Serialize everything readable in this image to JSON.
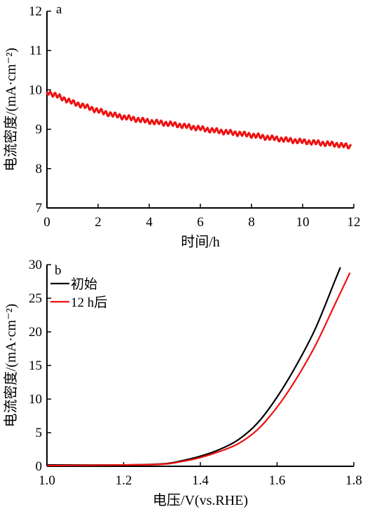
{
  "chart_data": [
    {
      "type": "line",
      "panel_label": "a",
      "xlabel": "时间/h",
      "ylabel": "电流密度/(mA·cm⁻²)",
      "xlim": [
        0,
        12
      ],
      "ylim": [
        7,
        12
      ],
      "xticks": [
        "0",
        "2",
        "4",
        "6",
        "8",
        "10",
        "12"
      ],
      "yticks": [
        "7",
        "8",
        "9",
        "10",
        "11",
        "12"
      ],
      "grid": false,
      "series": [
        {
          "color": "#ee1111",
          "x": [
            0,
            0.5,
            1,
            1.5,
            2,
            2.5,
            3,
            3.5,
            4,
            4.5,
            5,
            5.5,
            6,
            6.5,
            7,
            7.5,
            8,
            8.5,
            9,
            9.5,
            10,
            10.5,
            11,
            11.5,
            11.9
          ],
          "y": [
            9.95,
            9.82,
            9.68,
            9.58,
            9.47,
            9.38,
            9.31,
            9.25,
            9.2,
            9.16,
            9.12,
            9.07,
            9.02,
            8.97,
            8.93,
            8.89,
            8.85,
            8.8,
            8.76,
            8.72,
            8.69,
            8.66,
            8.63,
            8.6,
            8.55
          ]
        }
      ]
    },
    {
      "type": "line",
      "panel_label": "b",
      "xlabel": "电压/V(vs.RHE)",
      "ylabel": "电流密度/(mA·cm⁻²)",
      "xlim": [
        1.0,
        1.8
      ],
      "ylim": [
        0,
        30
      ],
      "xticks": [
        "1.0",
        "1.2",
        "1.4",
        "1.6",
        "1.8"
      ],
      "yticks": [
        "0",
        "5",
        "10",
        "15",
        "20",
        "25",
        "30"
      ],
      "grid": false,
      "legend": "top-left",
      "series": [
        {
          "name": "初始",
          "color": "#000000",
          "x": [
            1.0,
            1.2,
            1.3,
            1.35,
            1.4,
            1.45,
            1.5,
            1.55,
            1.6,
            1.65,
            1.7,
            1.75,
            1.765
          ],
          "y": [
            0.2,
            0.2,
            0.35,
            0.8,
            1.5,
            2.5,
            4.0,
            6.5,
            10.3,
            15.0,
            20.5,
            27.5,
            29.6
          ]
        },
        {
          "name": "12 h后",
          "color": "#ee1111",
          "x": [
            1.0,
            1.2,
            1.3,
            1.35,
            1.4,
            1.45,
            1.5,
            1.55,
            1.6,
            1.65,
            1.7,
            1.75,
            1.79
          ],
          "y": [
            0.1,
            0.2,
            0.3,
            0.7,
            1.3,
            2.2,
            3.4,
            5.5,
            8.8,
            13.0,
            18.0,
            24.0,
            28.8
          ]
        }
      ]
    }
  ]
}
